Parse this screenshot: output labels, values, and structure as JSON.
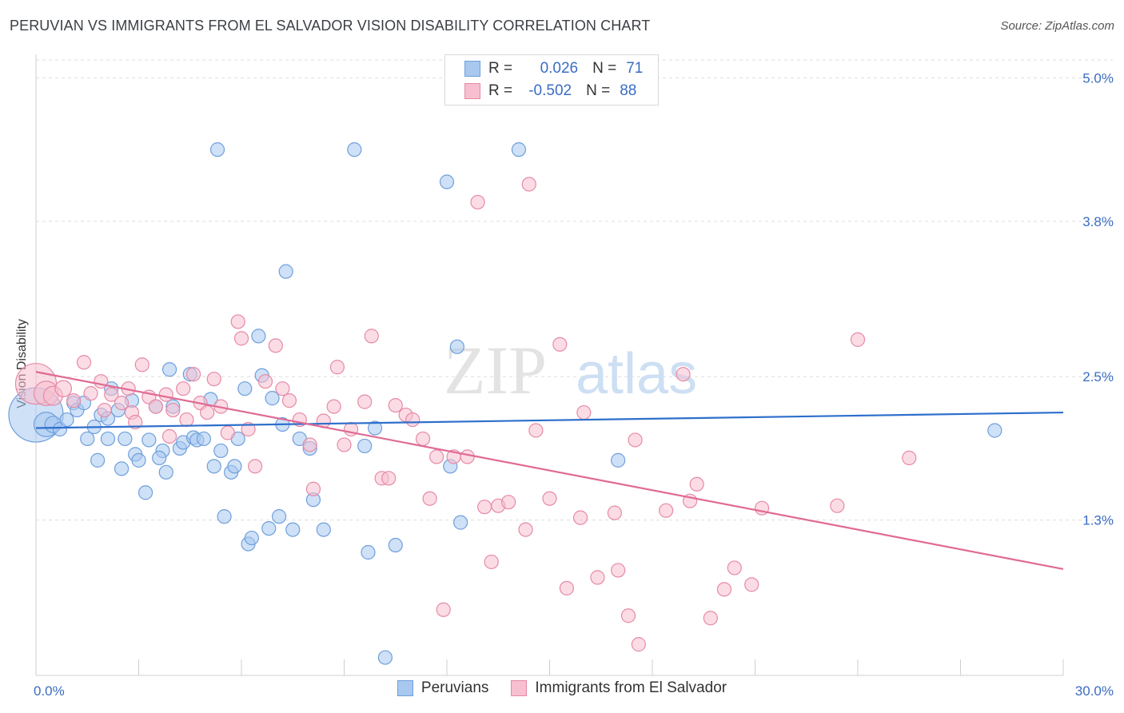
{
  "title": "PERUVIAN VS IMMIGRANTS FROM EL SALVADOR VISION DISABILITY CORRELATION CHART",
  "source": "Source: ZipAtlas.com",
  "watermark": {
    "zip": "ZIP",
    "atlas": "atlas"
  },
  "legend": {
    "rows": [
      {
        "r_label": "R =",
        "r_value": "0.026",
        "n_label": "N =",
        "n_value": "71",
        "color": "#a8c8f0",
        "border": "#6f9fdc"
      },
      {
        "r_label": "R =",
        "r_value": "-0.502",
        "n_label": "N =",
        "n_value": "88",
        "color": "#f7bfd0",
        "border": "#e68aa6"
      }
    ]
  },
  "bottom_legend": [
    {
      "label": "Peruvians",
      "color": "#a8c8f0",
      "border": "#6f9fdc"
    },
    {
      "label": "Immigrants from El Salvador",
      "color": "#f7bfd0",
      "border": "#e68aa6"
    }
  ],
  "chart_data": {
    "type": "scatter",
    "title": "PERUVIAN VS IMMIGRANTS FROM EL SALVADOR VISION DISABILITY CORRELATION CHART",
    "xlabel": "",
    "ylabel": "Vision Disability",
    "xlim": [
      0,
      30
    ],
    "ylim": [
      0,
      5.15
    ],
    "x_tick_labels": [
      "0.0%",
      "30.0%"
    ],
    "y_tick_values": [
      1.3,
      2.5,
      3.8,
      5.0
    ],
    "y_tick_labels": [
      "1.3%",
      "2.5%",
      "3.8%",
      "5.0%"
    ],
    "grid": true,
    "legend_position": "top-center",
    "series": [
      {
        "name": "Peruvians",
        "color": "#6f9fdc",
        "fill": "#a8c8f0",
        "line_color": "#2e6fcc",
        "trend": {
          "x": [
            0,
            30
          ],
          "y": [
            2.07,
            2.2
          ]
        },
        "points": [
          [
            0.0,
            2.18,
            40
          ],
          [
            0.3,
            2.1,
            18
          ],
          [
            0.5,
            2.1,
            12
          ],
          [
            0.7,
            2.06,
            10
          ],
          [
            0.9,
            2.14,
            10
          ],
          [
            1.1,
            2.28,
            10
          ],
          [
            1.2,
            2.22,
            10
          ],
          [
            1.4,
            2.28,
            10
          ],
          [
            1.5,
            1.98,
            10
          ],
          [
            1.7,
            2.08,
            10
          ],
          [
            1.8,
            1.8,
            10
          ],
          [
            1.9,
            2.18,
            10
          ],
          [
            2.1,
            1.98,
            10
          ],
          [
            2.2,
            2.4,
            10
          ],
          [
            2.4,
            2.22,
            10
          ],
          [
            2.5,
            1.73,
            10
          ],
          [
            2.6,
            1.98,
            10
          ],
          [
            2.8,
            2.3,
            10
          ],
          [
            2.9,
            1.85,
            10
          ],
          [
            3.0,
            1.8,
            10
          ],
          [
            3.2,
            1.53,
            10
          ],
          [
            3.3,
            1.97,
            10
          ],
          [
            3.5,
            2.25,
            10
          ],
          [
            3.7,
            1.88,
            10
          ],
          [
            3.8,
            1.7,
            10
          ],
          [
            3.9,
            2.56,
            10
          ],
          [
            4.0,
            2.25,
            10
          ],
          [
            4.2,
            1.9,
            10
          ],
          [
            4.3,
            1.95,
            10
          ],
          [
            4.5,
            2.52,
            10
          ],
          [
            4.6,
            1.99,
            10
          ],
          [
            4.7,
            1.97,
            10
          ],
          [
            4.9,
            1.98,
            10
          ],
          [
            5.1,
            2.31,
            10
          ],
          [
            5.2,
            1.75,
            10
          ],
          [
            5.4,
            1.88,
            10
          ],
          [
            5.5,
            1.33,
            10
          ],
          [
            5.7,
            1.7,
            10
          ],
          [
            5.8,
            1.75,
            10
          ],
          [
            5.9,
            1.98,
            10
          ],
          [
            6.1,
            2.4,
            10
          ],
          [
            6.2,
            1.1,
            10
          ],
          [
            6.3,
            1.15,
            10
          ],
          [
            6.5,
            2.84,
            10
          ],
          [
            6.6,
            2.51,
            10
          ],
          [
            6.8,
            1.23,
            10
          ],
          [
            6.9,
            2.32,
            10
          ],
          [
            7.1,
            1.33,
            10
          ],
          [
            7.3,
            3.38,
            10
          ],
          [
            7.5,
            1.22,
            10
          ],
          [
            7.7,
            1.98,
            10
          ],
          [
            8.0,
            1.9,
            10
          ],
          [
            8.1,
            1.47,
            10
          ],
          [
            8.4,
            1.22,
            10
          ],
          [
            9.3,
            4.4,
            10
          ],
          [
            9.6,
            1.92,
            10
          ],
          [
            9.9,
            2.07,
            10
          ],
          [
            9.7,
            1.03,
            10
          ],
          [
            10.2,
            0.15,
            10
          ],
          [
            10.5,
            1.09,
            10
          ],
          [
            12.1,
            1.75,
            10
          ],
          [
            12.0,
            4.13,
            10
          ],
          [
            12.3,
            2.75,
            10
          ],
          [
            12.4,
            1.28,
            10
          ],
          [
            14.1,
            4.4,
            10
          ],
          [
            17.0,
            1.8,
            10
          ],
          [
            5.3,
            4.4,
            10
          ],
          [
            7.2,
            2.1,
            10
          ],
          [
            3.6,
            1.82,
            10
          ],
          [
            28.0,
            2.05,
            10
          ],
          [
            2.1,
            2.15,
            10
          ]
        ]
      },
      {
        "name": "Immigrants from El Salvador",
        "color": "#e68aa6",
        "fill": "#f7bfd0",
        "line_color": "#e06a94",
        "trend": {
          "x": [
            0,
            30
          ],
          "y": [
            2.54,
            0.89
          ]
        },
        "points": [
          [
            0.0,
            2.44,
            30
          ],
          [
            0.3,
            2.36,
            18
          ],
          [
            0.5,
            2.34,
            14
          ],
          [
            0.8,
            2.4,
            12
          ],
          [
            1.1,
            2.3,
            10
          ],
          [
            1.4,
            2.62,
            10
          ],
          [
            1.6,
            2.36,
            10
          ],
          [
            1.9,
            2.46,
            10
          ],
          [
            2.0,
            2.22,
            10
          ],
          [
            2.2,
            2.35,
            10
          ],
          [
            2.5,
            2.28,
            10
          ],
          [
            2.7,
            2.4,
            10
          ],
          [
            2.8,
            2.2,
            10
          ],
          [
            2.9,
            2.12,
            10
          ],
          [
            3.1,
            2.6,
            10
          ],
          [
            3.3,
            2.33,
            10
          ],
          [
            3.5,
            2.25,
            10
          ],
          [
            3.8,
            2.35,
            10
          ],
          [
            3.9,
            2.0,
            10
          ],
          [
            4.0,
            2.22,
            10
          ],
          [
            4.3,
            2.4,
            10
          ],
          [
            4.4,
            2.14,
            10
          ],
          [
            4.6,
            2.52,
            10
          ],
          [
            4.8,
            2.28,
            10
          ],
          [
            5.0,
            2.2,
            10
          ],
          [
            5.2,
            2.48,
            10
          ],
          [
            5.4,
            2.25,
            10
          ],
          [
            5.6,
            2.03,
            10
          ],
          [
            5.9,
            2.96,
            10
          ],
          [
            6.0,
            2.82,
            10
          ],
          [
            6.2,
            2.06,
            10
          ],
          [
            6.4,
            1.75,
            10
          ],
          [
            6.7,
            2.46,
            10
          ],
          [
            7.0,
            2.76,
            10
          ],
          [
            7.2,
            2.4,
            10
          ],
          [
            7.4,
            2.3,
            10
          ],
          [
            7.7,
            2.14,
            10
          ],
          [
            8.0,
            1.93,
            10
          ],
          [
            8.1,
            1.56,
            10
          ],
          [
            8.4,
            2.13,
            10
          ],
          [
            8.7,
            2.25,
            10
          ],
          [
            8.8,
            2.58,
            10
          ],
          [
            9.0,
            1.93,
            10
          ],
          [
            9.2,
            2.06,
            10
          ],
          [
            9.6,
            2.29,
            10
          ],
          [
            9.8,
            2.84,
            10
          ],
          [
            10.1,
            1.65,
            10
          ],
          [
            10.3,
            1.65,
            10
          ],
          [
            10.5,
            2.26,
            10
          ],
          [
            10.8,
            2.18,
            10
          ],
          [
            11.0,
            2.14,
            10
          ],
          [
            11.3,
            1.98,
            10
          ],
          [
            11.5,
            1.48,
            10
          ],
          [
            11.7,
            1.83,
            10
          ],
          [
            11.9,
            0.55,
            10
          ],
          [
            12.2,
            1.83,
            10
          ],
          [
            12.6,
            1.83,
            10
          ],
          [
            12.9,
            3.96,
            10
          ],
          [
            13.1,
            1.41,
            10
          ],
          [
            13.3,
            0.95,
            10
          ],
          [
            13.5,
            1.42,
            10
          ],
          [
            13.8,
            1.45,
            10
          ],
          [
            14.3,
            1.22,
            10
          ],
          [
            14.6,
            2.05,
            10
          ],
          [
            15.0,
            1.48,
            10
          ],
          [
            15.3,
            2.77,
            10
          ],
          [
            15.5,
            0.73,
            10
          ],
          [
            15.9,
            1.32,
            10
          ],
          [
            16.0,
            2.2,
            10
          ],
          [
            16.4,
            0.82,
            10
          ],
          [
            16.9,
            1.36,
            10
          ],
          [
            17.0,
            0.88,
            10
          ],
          [
            17.3,
            0.5,
            10
          ],
          [
            17.5,
            1.97,
            10
          ],
          [
            17.6,
            0.26,
            10
          ],
          [
            18.4,
            1.38,
            10
          ],
          [
            18.9,
            2.52,
            10
          ],
          [
            19.1,
            1.46,
            10
          ],
          [
            19.3,
            1.6,
            10
          ],
          [
            19.7,
            0.48,
            10
          ],
          [
            20.1,
            0.72,
            10
          ],
          [
            20.4,
            0.9,
            10
          ],
          [
            20.9,
            0.76,
            10
          ],
          [
            21.2,
            1.4,
            10
          ],
          [
            23.4,
            1.42,
            10
          ],
          [
            24.0,
            2.81,
            10
          ],
          [
            25.5,
            1.82,
            10
          ],
          [
            14.4,
            4.11,
            10
          ]
        ]
      }
    ]
  }
}
